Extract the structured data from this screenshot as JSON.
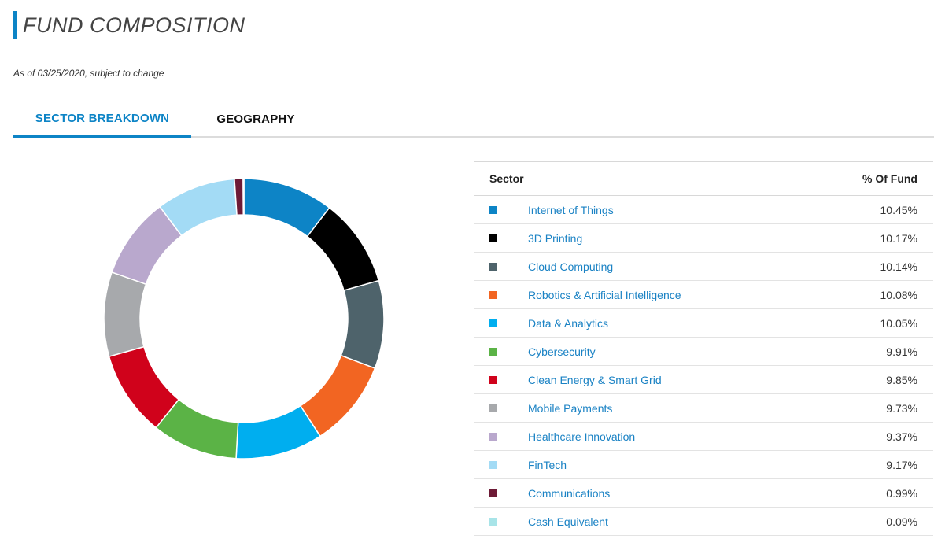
{
  "header": {
    "title": "FUND COMPOSITION",
    "as_of": "As of 03/25/2020, subject to change",
    "accent_color": "#0d84c6"
  },
  "tabs": [
    {
      "label": "SECTOR BREAKDOWN",
      "active": true
    },
    {
      "label": "GEOGRAPHY",
      "active": false
    }
  ],
  "table": {
    "headers": {
      "sector": "Sector",
      "pct": "% Of Fund"
    },
    "rows": [
      {
        "name": "Internet of Things",
        "pct": "10.45%",
        "color": "#0d84c6"
      },
      {
        "name": "3D Printing",
        "pct": "10.17%",
        "color": "#000000"
      },
      {
        "name": "Cloud Computing",
        "pct": "10.14%",
        "color": "#4e636b"
      },
      {
        "name": "Robotics & Artificial Intelligence",
        "pct": "10.08%",
        "color": "#f26522"
      },
      {
        "name": "Data & Analytics",
        "pct": "10.05%",
        "color": "#00aeef"
      },
      {
        "name": "Cybersecurity",
        "pct": "9.91%",
        "color": "#5bb346"
      },
      {
        "name": "Clean Energy & Smart Grid",
        "pct": "9.85%",
        "color": "#d0021b"
      },
      {
        "name": "Mobile Payments",
        "pct": "9.73%",
        "color": "#a7a9ac"
      },
      {
        "name": "Healthcare Innovation",
        "pct": "9.37%",
        "color": "#b9a8cd"
      },
      {
        "name": "FinTech",
        "pct": "9.17%",
        "color": "#a3dbf5"
      },
      {
        "name": "Communications",
        "pct": "0.99%",
        "color": "#6d1a36"
      },
      {
        "name": "Cash Equivalent",
        "pct": "0.09%",
        "color": "#a8e4e8"
      }
    ]
  },
  "chart_data": {
    "type": "pie",
    "variant": "donut",
    "categories": [
      "Internet of Things",
      "3D Printing",
      "Cloud Computing",
      "Robotics & Artificial Intelligence",
      "Data & Analytics",
      "Cybersecurity",
      "Clean Energy & Smart Grid",
      "Mobile Payments",
      "Healthcare Innovation",
      "FinTech",
      "Communications",
      "Cash Equivalent"
    ],
    "values": [
      10.45,
      10.17,
      10.14,
      10.08,
      10.05,
      9.91,
      9.85,
      9.73,
      9.37,
      9.17,
      0.99,
      0.09
    ],
    "colors": [
      "#0d84c6",
      "#000000",
      "#4e636b",
      "#f26522",
      "#00aeef",
      "#5bb346",
      "#d0021b",
      "#a7a9ac",
      "#b9a8cd",
      "#a3dbf5",
      "#6d1a36",
      "#a8e4e8"
    ],
    "title": "",
    "legend": "table-right"
  }
}
